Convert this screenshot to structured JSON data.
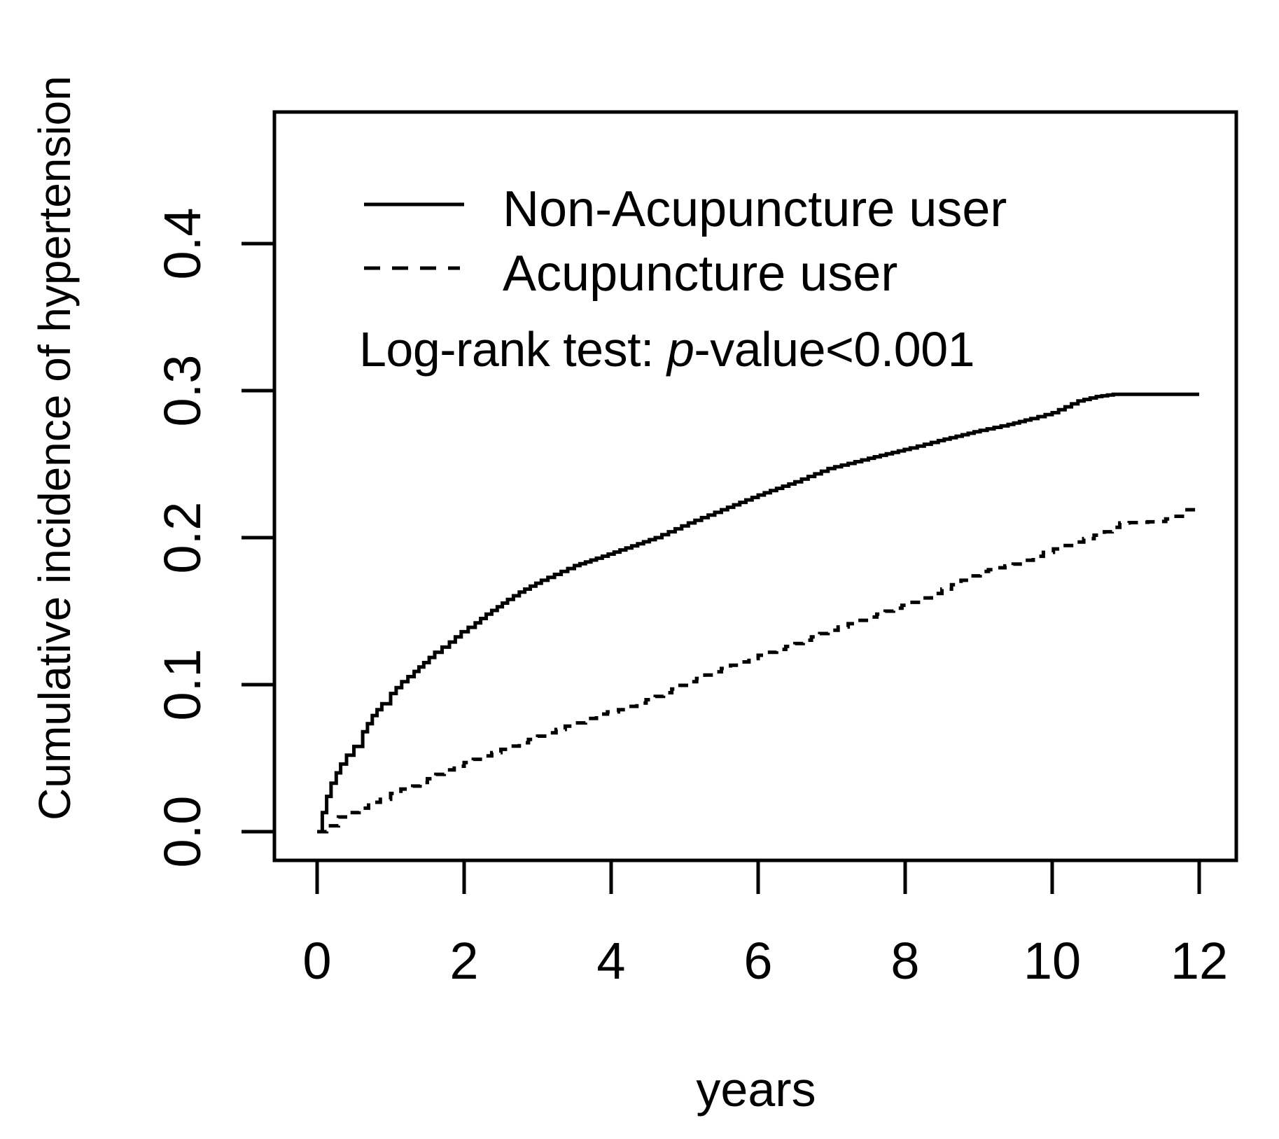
{
  "figure": {
    "background_color": "#ffffff",
    "ink_color": "#000000"
  },
  "chart_data": {
    "type": "line",
    "subtype": "cumulative-incidence-step-curves",
    "title": "",
    "xlabel": "years",
    "ylabel": "Cumulative incidence of hypertension",
    "x_ticks": [
      0,
      2,
      4,
      6,
      8,
      10,
      12
    ],
    "y_tick_labels": [
      "0.0",
      "0.1",
      "0.2",
      "0.3",
      "0.4"
    ],
    "xlim": [
      -0.6,
      12.5
    ],
    "ylim": [
      -0.02,
      0.51
    ],
    "grid": false,
    "legend_position": "top-left-inside",
    "annotation": {
      "prefix": "Log-rank test: ",
      "italic_part": "p",
      "suffix": "-value<0.001"
    },
    "legend": [
      {
        "label": "Non-Acupuncture user",
        "style": "solid"
      },
      {
        "label": "Acupuncture user",
        "style": "dashed"
      }
    ],
    "series": [
      {
        "name": "Non-Acupuncture user",
        "style": "solid",
        "points": [
          [
            0,
            0
          ],
          [
            0.07,
            0.013
          ],
          [
            0.13,
            0.024
          ],
          [
            0.19,
            0.033
          ],
          [
            0.26,
            0.04
          ],
          [
            0.32,
            0.046
          ],
          [
            0.4,
            0.052
          ],
          [
            0.5,
            0.058
          ],
          [
            0.62,
            0.068
          ],
          [
            0.75,
            0.079
          ],
          [
            0.88,
            0.087
          ],
          [
            1.0,
            0.094
          ],
          [
            1.15,
            0.102
          ],
          [
            1.32,
            0.109
          ],
          [
            1.45,
            0.115
          ],
          [
            1.6,
            0.122
          ],
          [
            1.8,
            0.129
          ],
          [
            1.96,
            0.136
          ],
          [
            2.15,
            0.142
          ],
          [
            2.3,
            0.148
          ],
          [
            2.45,
            0.153
          ],
          [
            2.59,
            0.158
          ],
          [
            2.75,
            0.163
          ],
          [
            2.9,
            0.167
          ],
          [
            3.05,
            0.171
          ],
          [
            3.23,
            0.175
          ],
          [
            3.5,
            0.181
          ],
          [
            3.8,
            0.186
          ],
          [
            4.2,
            0.193
          ],
          [
            4.6,
            0.2
          ],
          [
            5.05,
            0.21
          ],
          [
            5.5,
            0.219
          ],
          [
            6.0,
            0.229
          ],
          [
            6.5,
            0.238
          ],
          [
            6.95,
            0.247
          ],
          [
            7.5,
            0.254
          ],
          [
            8.07,
            0.261
          ],
          [
            8.45,
            0.266
          ],
          [
            9.02,
            0.273
          ],
          [
            9.4,
            0.277
          ],
          [
            9.71,
            0.281
          ],
          [
            10.0,
            0.285
          ],
          [
            10.35,
            0.293
          ],
          [
            10.6,
            0.296
          ],
          [
            10.83,
            0.2975
          ],
          [
            12.0,
            0.2975
          ]
        ]
      },
      {
        "name": "Acupuncture user",
        "style": "dashed",
        "points": [
          [
            0,
            0
          ],
          [
            0.13,
            0.004
          ],
          [
            0.29,
            0.01
          ],
          [
            0.45,
            0.013
          ],
          [
            0.57,
            0.016
          ],
          [
            0.7,
            0.02
          ],
          [
            0.86,
            0.022
          ],
          [
            1.0,
            0.026
          ],
          [
            1.14,
            0.029
          ],
          [
            1.3,
            0.031
          ],
          [
            1.5,
            0.036
          ],
          [
            1.73,
            0.042
          ],
          [
            2.0,
            0.047
          ],
          [
            2.5,
            0.056
          ],
          [
            3.0,
            0.065
          ],
          [
            3.5,
            0.074
          ],
          [
            3.8,
            0.08
          ],
          [
            4.1,
            0.083
          ],
          [
            4.6,
            0.092
          ],
          [
            5.05,
            0.102
          ],
          [
            5.5,
            0.111
          ],
          [
            6.0,
            0.12
          ],
          [
            6.5,
            0.128
          ],
          [
            6.95,
            0.137
          ],
          [
            7.5,
            0.146
          ],
          [
            8.07,
            0.156
          ],
          [
            8.5,
            0.165
          ],
          [
            9.02,
            0.177
          ],
          [
            9.47,
            0.182
          ],
          [
            9.88,
            0.19
          ],
          [
            10.29,
            0.197
          ],
          [
            10.71,
            0.204
          ],
          [
            10.92,
            0.21
          ],
          [
            11.43,
            0.211
          ],
          [
            11.66,
            0.2145
          ],
          [
            11.8,
            0.219
          ],
          [
            11.95,
            0.219
          ]
        ]
      }
    ]
  }
}
